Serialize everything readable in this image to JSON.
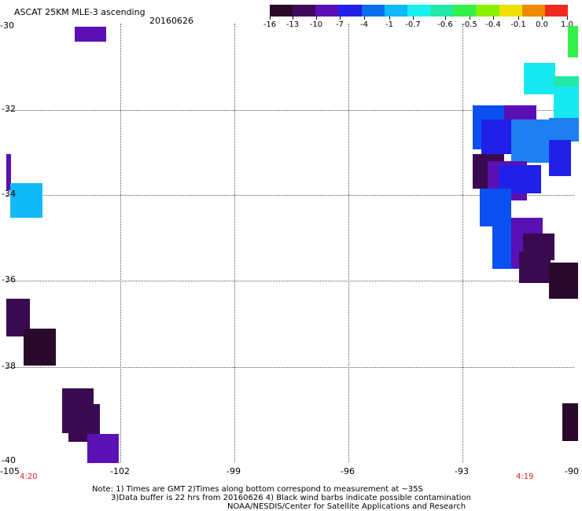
{
  "header": {
    "title": "ASCAT 25KM MLE-3 ascending",
    "date": "20160626"
  },
  "colorbar": {
    "labels": [
      "-16",
      "-13",
      "-10",
      "-7",
      "-4",
      "-1",
      "-0.7",
      "-0.6",
      "-0.5",
      "-0.4",
      "-0.1",
      "0.0",
      "1.0"
    ],
    "colors": [
      "#2a0a2a",
      "#3f0a5a",
      "#5a10b4",
      "#2020e8",
      "#0a6ef0",
      "#10b8f8",
      "#18f0f0",
      "#22e8a8",
      "#33f04a",
      "#88f000",
      "#f0e000",
      "#f08a00",
      "#f02a20"
    ]
  },
  "axes": {
    "lat_labels": [
      "-30",
      "-32",
      "-34",
      "-36",
      "-38",
      "-40"
    ],
    "lon_labels": [
      "-105",
      "-102",
      "-99",
      "-96",
      "-93",
      "-90"
    ],
    "lat_range": [
      -40,
      -30
    ],
    "lon_range": [
      -105,
      -90
    ]
  },
  "times": [
    "4:20",
    "4:19"
  ],
  "footer": {
    "line1": "Note: 1) Times are GMT 2)Times along bottom correspond to measurement at ~35S",
    "line2": "3)Data buffer is 22 hrs from 20160626 4) Black wind barbs indicate possible contamination",
    "line3": "NOAA/NESDIS/Center for Satellite Applications and Research"
  },
  "palette": {
    "dark": "#2a0a2a",
    "darkpurple": "#3a0a50",
    "purple": "#5a10b4",
    "blue": "#2020e8",
    "blue2": "#0a50f0",
    "midblue": "#1e80f0",
    "lightblue": "#10b8f8",
    "cyan": "#18e8f0",
    "teal": "#22e8a8",
    "green": "#33f04a"
  }
}
